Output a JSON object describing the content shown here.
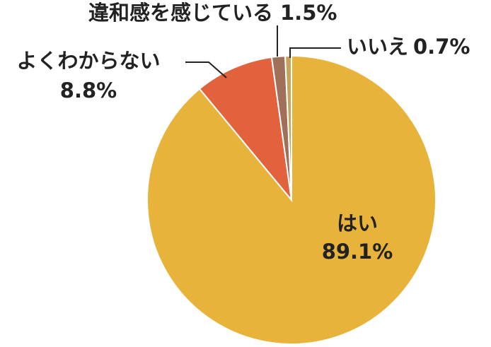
{
  "chart_data": {
    "type": "pie",
    "categories": [
      "はい",
      "よくわからない",
      "違和感を感じている",
      "いいえ"
    ],
    "values": [
      89.1,
      8.8,
      1.5,
      0.7
    ],
    "value_labels": [
      "89.1%",
      "8.8%",
      "1.5%",
      "0.7%"
    ],
    "colors": [
      "#e8b33a",
      "#e2623d",
      "#a0705a",
      "#c7a45c"
    ]
  }
}
